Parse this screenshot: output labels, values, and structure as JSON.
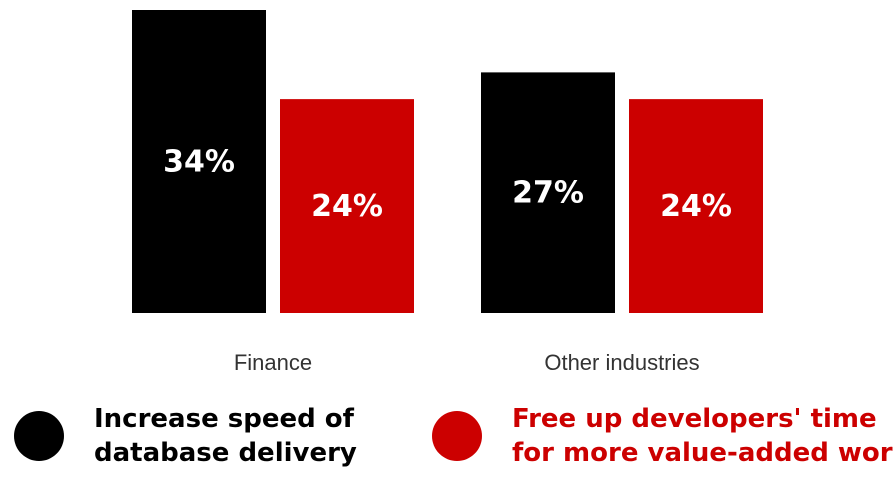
{
  "chart_data": {
    "type": "bar",
    "categories": [
      "Finance",
      "Other industries"
    ],
    "series": [
      {
        "name": "Increase speed of database delivery",
        "values": [
          34,
          27
        ],
        "labels": [
          "34%",
          "27%"
        ],
        "color": "#000000"
      },
      {
        "name": "Free up developers' time for more value-added work",
        "values": [
          24,
          24
        ],
        "labels": [
          "24%",
          "24%"
        ],
        "color": "#cc0000"
      }
    ],
    "ylim": [
      0,
      34
    ],
    "grid": false,
    "legend_position": "bottom",
    "title": "",
    "xlabel": "",
    "ylabel": ""
  },
  "legend": [
    {
      "lines": [
        "Increase speed of",
        "database delivery"
      ],
      "dot_color": "#000000",
      "text_color": "#000000"
    },
    {
      "lines": [
        "Free up developers' time",
        "for more value-added work"
      ],
      "dot_color": "#cc0000",
      "text_color": "#cc0000"
    }
  ]
}
